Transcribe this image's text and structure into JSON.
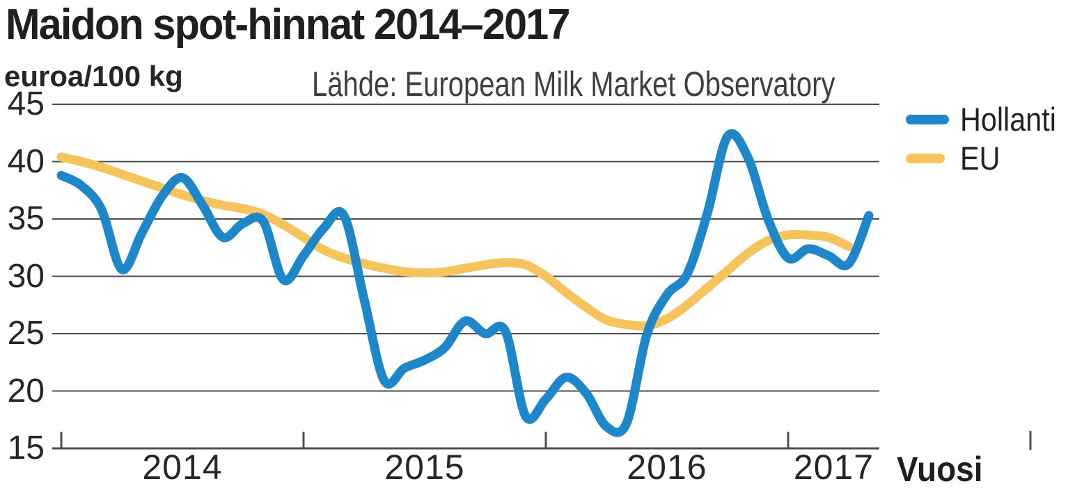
{
  "header": {
    "title": "Maidon spot-hinnat 2014–2017",
    "unit": "euroa/100 kg",
    "source": "Lähde: European Milk Market Observatory"
  },
  "axis": {
    "x_title": "Vuosi"
  },
  "chart_data": {
    "type": "line",
    "title": "Maidon spot-hinnat 2014–2017",
    "ylabel": "euroa/100 kg",
    "xlabel": "Vuosi",
    "source": "Lähde: European Milk Market Observatory",
    "x_start": "2014-01",
    "x_interval": "monthly",
    "x_tick_labels": [
      "2014",
      "2015",
      "2016",
      "2017"
    ],
    "y_ticks": [
      15,
      20,
      25,
      30,
      35,
      40,
      45
    ],
    "ylim": [
      15,
      45
    ],
    "grid": "horizontal",
    "legend_position": "top-right",
    "grid_color": "#4d4d4d",
    "text_color": "#262626",
    "series": [
      {
        "name": "EU",
        "color": "#f6c45c",
        "values": [
          40.4,
          40.0,
          39.5,
          38.9,
          38.3,
          37.7,
          37.1,
          36.6,
          36.2,
          35.9,
          35.4,
          34.5,
          33.4,
          32.3,
          31.6,
          31.1,
          30.7,
          30.4,
          30.3,
          30.4,
          30.7,
          31.0,
          31.2,
          31.0,
          30.0,
          28.6,
          27.3,
          26.2,
          25.8,
          25.7,
          26.3,
          27.5,
          29.0,
          30.5,
          32.0,
          33.1,
          33.6,
          33.6,
          33.4,
          32.6
        ]
      },
      {
        "name": "Hollanti",
        "color": "#1d87ca",
        "values": [
          38.8,
          37.9,
          35.8,
          30.6,
          33.8,
          37.0,
          38.6,
          36.2,
          33.4,
          34.6,
          34.8,
          29.7,
          31.8,
          34.2,
          35.3,
          28.0,
          20.9,
          22.0,
          22.7,
          23.8,
          26.1,
          25.0,
          25.2,
          17.8,
          19.3,
          21.2,
          19.8,
          16.9,
          17.2,
          24.9,
          28.4,
          30.2,
          35.5,
          42.2,
          40.4,
          35.0,
          31.6,
          32.4,
          31.8,
          31.1,
          35.3
        ]
      }
    ]
  }
}
